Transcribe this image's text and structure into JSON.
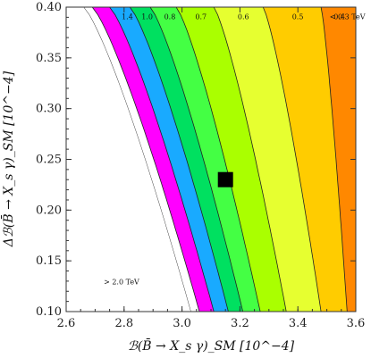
{
  "chart_data": {
    "type": "contour",
    "title": "",
    "xlabel": "ℬ(B̄ → X_s γ)_SM  [10^−4]",
    "ylabel": "Δℬ(B̄ → X_s γ)_SM  [10^−4]",
    "xlim": [
      2.6,
      3.6
    ],
    "ylim": [
      0.1,
      0.4
    ],
    "x_ticks": [
      "2.6",
      "2.8",
      "3.0",
      "3.2",
      "3.4",
      "3.6"
    ],
    "y_ticks": [
      "0.10",
      "0.15",
      "0.20",
      "0.25",
      "0.30",
      "0.35",
      "0.40"
    ],
    "x_tick_values": [
      2.6,
      2.8,
      3.0,
      3.2,
      3.4,
      3.6
    ],
    "y_tick_values": [
      0.1,
      0.15,
      0.2,
      0.25,
      0.3,
      0.35,
      0.4
    ],
    "contours": [
      {
        "label": "> 2.0 TeV",
        "color": "#ffffff",
        "x_top": 2.66,
        "x_bottom": 3.03
      },
      {
        "label": "",
        "color": "#ff00ff",
        "x_top": 2.69,
        "x_bottom": 3.06
      },
      {
        "label": "1.4",
        "color": "#19aaff",
        "x_top": 2.75,
        "x_bottom": 3.11
      },
      {
        "label": "1.0",
        "color": "#00e060",
        "x_top": 2.82,
        "x_bottom": 3.16
      },
      {
        "label": "0.8",
        "color": "#44ff44",
        "x_top": 2.89,
        "x_bottom": 3.21
      },
      {
        "label": "0.7",
        "color": "#aaff00",
        "x_top": 2.98,
        "x_bottom": 3.27
      },
      {
        "label": "0.6",
        "color": "#e6ff30",
        "x_top": 3.11,
        "x_bottom": 3.36
      },
      {
        "label": "0.5",
        "color": "#ffcc00",
        "x_top": 3.28,
        "x_bottom": 3.48
      },
      {
        "label": "0.4",
        "color": "#ff8800",
        "x_top": 3.48,
        "x_bottom": 3.57
      },
      {
        "label": "< 0.3 TeV",
        "color": "#ff0000",
        "x_top": 3.6,
        "x_bottom": 3.6
      }
    ],
    "point": {
      "x": 3.15,
      "y": 0.23
    },
    "grid": false,
    "legend": "none"
  }
}
